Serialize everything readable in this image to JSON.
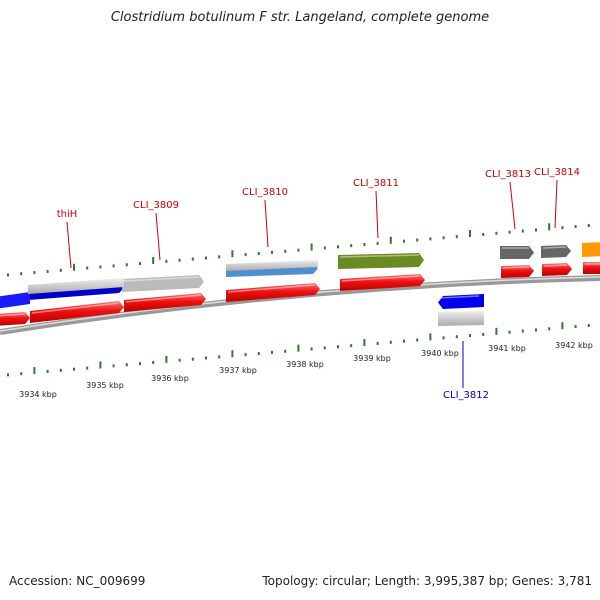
{
  "title": "Clostridium botulinum F str. Langeland, complete genome",
  "footer": {
    "accession": "Accession: NC_009699",
    "stats": "Topology: circular; Length: 3,995,387 bp; Genes: 3,781"
  },
  "colors": {
    "backbone": "#888888",
    "tick": "#2a7a2a",
    "cds": "#e8141e",
    "gene_label_forward": "#cc0000",
    "gene_label_reverse": "#0000cc",
    "tick_label": "#222222"
  },
  "axis": {
    "unit": "kbp",
    "ticks": [
      "3934 kbp",
      "3935 kbp",
      "3936 kbp",
      "3937 kbp",
      "3938 kbp",
      "3939 kbp",
      "3940 kbp",
      "3941 kbp",
      "3942 kbp"
    ]
  },
  "genes": [
    {
      "label": "thiH",
      "strand": "forward",
      "color": "#0000cc"
    },
    {
      "label": "CLI_3809",
      "strand": "forward",
      "color": "#bbbbbb"
    },
    {
      "label": "CLI_3810",
      "strand": "forward",
      "color": "#4f8fcf"
    },
    {
      "label": "CLI_3811",
      "strand": "forward",
      "color": "#6a8a22"
    },
    {
      "label": "CLI_3812",
      "strand": "reverse",
      "color": "#0000ee"
    },
    {
      "label": "CLI_3813",
      "strand": "forward",
      "color": "#666666"
    },
    {
      "label": "CLI_3814",
      "strand": "forward",
      "color": "#666666"
    }
  ],
  "edge_feature": {
    "color": "#ff9900"
  }
}
